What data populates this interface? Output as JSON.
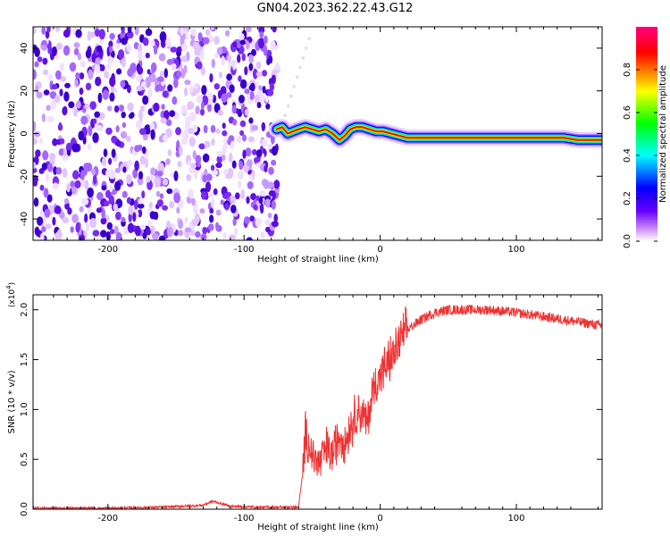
{
  "title": "GN04.2023.362.22.43.G12",
  "chart_data": [
    {
      "type": "heatmap",
      "xlabel": "Height of straight line (km)",
      "ylabel": "Frequency (Hz)",
      "xlim": [
        -255,
        163
      ],
      "ylim": [
        -50,
        50
      ],
      "xticks": [
        -200,
        -100,
        0,
        100
      ],
      "yticks": [
        -40,
        -20,
        0,
        20,
        40
      ],
      "noise_region_x": [
        -255,
        -75
      ],
      "signal_start_x": -76,
      "trace": [
        {
          "x": -76,
          "y": 2
        },
        {
          "x": -72,
          "y": 3
        },
        {
          "x": -68,
          "y": 0
        },
        {
          "x": -64,
          "y": 1
        },
        {
          "x": -60,
          "y": 2
        },
        {
          "x": -55,
          "y": 3
        },
        {
          "x": -50,
          "y": 2
        },
        {
          "x": -45,
          "y": 1
        },
        {
          "x": -40,
          "y": 2
        },
        {
          "x": -35,
          "y": 0
        },
        {
          "x": -30,
          "y": -3
        },
        {
          "x": -26,
          "y": -1
        },
        {
          "x": -22,
          "y": 2
        },
        {
          "x": -18,
          "y": 3
        },
        {
          "x": -13,
          "y": 3
        },
        {
          "x": -8,
          "y": 2
        },
        {
          "x": -3,
          "y": 1
        },
        {
          "x": 2,
          "y": 1
        },
        {
          "x": 8,
          "y": 0
        },
        {
          "x": 14,
          "y": -1
        },
        {
          "x": 20,
          "y": -2
        },
        {
          "x": 40,
          "y": -2
        },
        {
          "x": 60,
          "y": -2
        },
        {
          "x": 80,
          "y": -2
        },
        {
          "x": 100,
          "y": -2
        },
        {
          "x": 120,
          "y": -2
        },
        {
          "x": 135,
          "y": -2
        },
        {
          "x": 145,
          "y": -3
        },
        {
          "x": 163,
          "y": -3
        }
      ],
      "colorbar": {
        "label": "Normalized spectral amplitude",
        "range": [
          0,
          1
        ],
        "ticks": [
          "0.0",
          "0.2",
          "0.4",
          "0.6",
          "0.8"
        ],
        "colors": [
          "#ffffff",
          "#cc88ff",
          "#6600ff",
          "#0000ff",
          "#00ffff",
          "#00ff00",
          "#ffff00",
          "#ff0000",
          "#ff0080"
        ]
      }
    },
    {
      "type": "line",
      "xlabel": "Height of straight line (km)",
      "ylabel": "SNR (10 * v/v)",
      "yscale_label": "(x10",
      "yscale_exp": "4",
      "yscale_close": ")",
      "xlim": [
        -255,
        163
      ],
      "ylim": [
        0,
        2.15
      ],
      "xticks": [
        -200,
        -100,
        0,
        100
      ],
      "yticks": [
        "0.0",
        "0.5",
        "1.0",
        "1.5",
        "2.0"
      ],
      "color": "#ee3333",
      "x": [
        -255,
        -200,
        -160,
        -130,
        -123,
        -110,
        -90,
        -60,
        -57,
        -55,
        -50,
        -45,
        -40,
        -35,
        -30,
        -25,
        -20,
        -15,
        -10,
        -5,
        0,
        5,
        10,
        15,
        20,
        30,
        40,
        50,
        60,
        80,
        100,
        120,
        140,
        163
      ],
      "y": [
        0.01,
        0.01,
        0.02,
        0.04,
        0.08,
        0.03,
        0.02,
        0.02,
        0.35,
        0.75,
        0.55,
        0.45,
        0.6,
        0.55,
        0.75,
        0.7,
        0.9,
        1.0,
        0.85,
        1.2,
        1.35,
        1.45,
        1.55,
        1.7,
        1.8,
        1.9,
        1.97,
        2.0,
        2.0,
        2.0,
        1.97,
        1.93,
        1.89,
        1.84
      ]
    }
  ]
}
